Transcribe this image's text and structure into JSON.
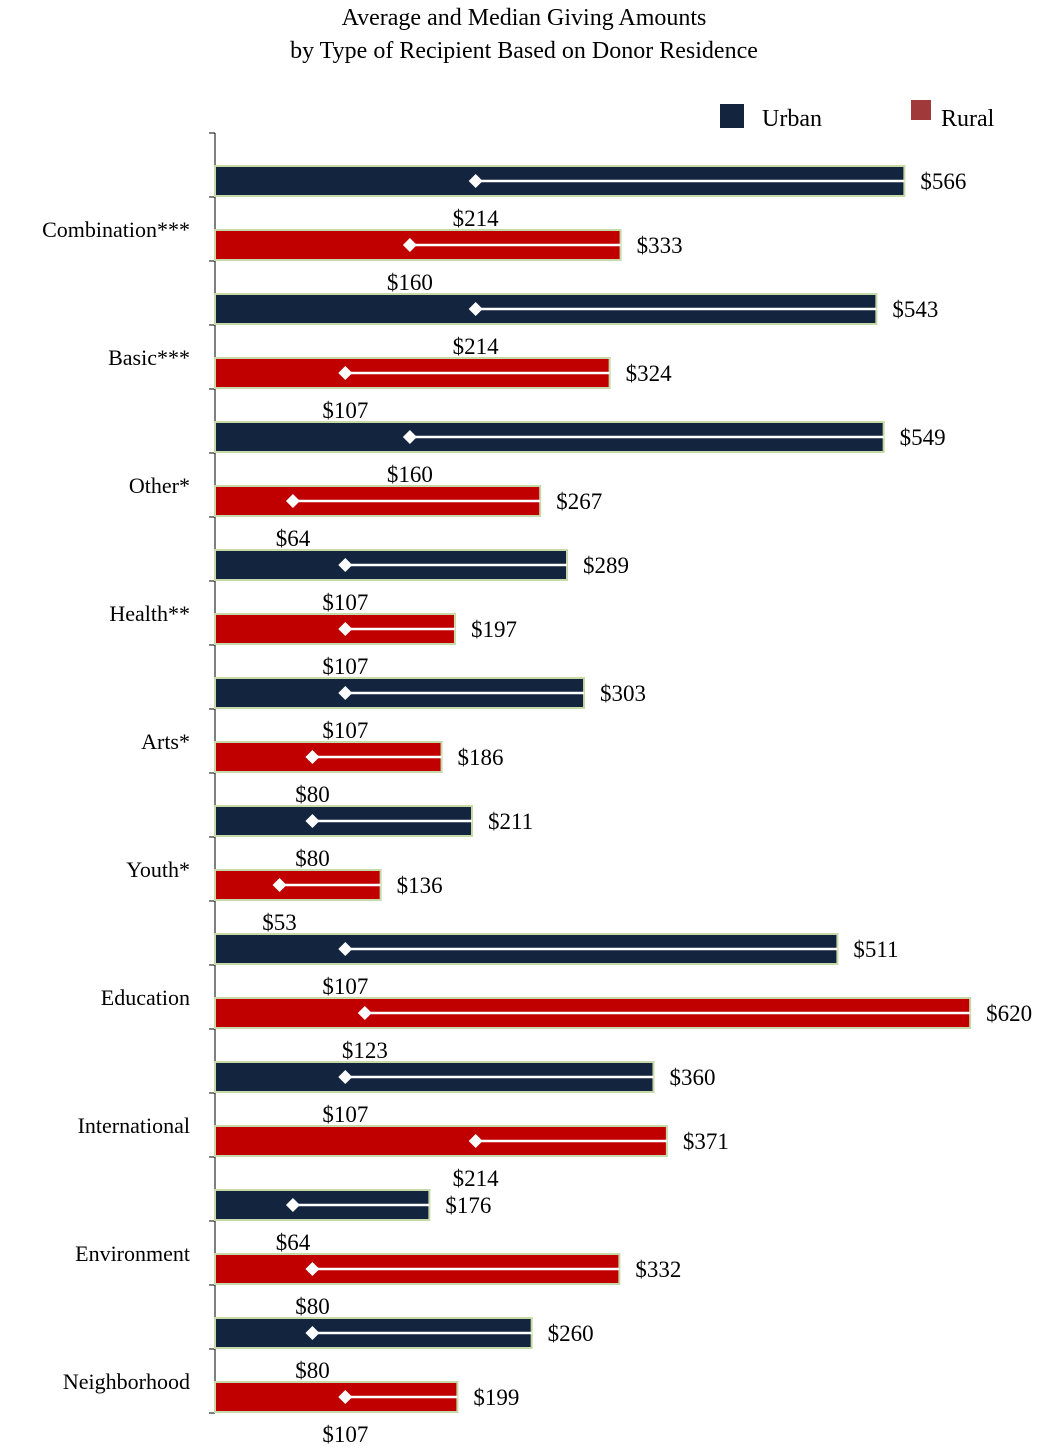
{
  "chart_data": {
    "type": "bar",
    "orientation": "horizontal",
    "title_lines": [
      "Average and Median Giving Amounts",
      "by  Type of Recipient Based on Donor Residence"
    ],
    "categories": [
      "Combination***",
      "Basic***",
      "Other*",
      "Health**",
      "Arts*",
      "Youth*",
      "Education",
      "International",
      "Environment",
      "Neighborhood"
    ],
    "series": [
      {
        "name": "Urban",
        "color": "#13243f",
        "values": [
          566,
          543,
          549,
          289,
          303,
          211,
          511,
          360,
          176,
          260
        ],
        "value_labels": [
          "$566",
          "$543",
          "$549",
          "$289",
          "$303",
          "$211",
          "$511",
          "$360",
          "$176",
          "$260"
        ],
        "medians": [
          214,
          214,
          160,
          107,
          107,
          80,
          107,
          107,
          64,
          80
        ],
        "median_labels": [
          "$214",
          "$214",
          "$160",
          "$107",
          "$107",
          "$80",
          "$107",
          "$107",
          "$64",
          "$80"
        ]
      },
      {
        "name": "Rural",
        "color": "#c00000",
        "values": [
          333,
          324,
          267,
          197,
          186,
          136,
          620,
          371,
          332,
          199
        ],
        "value_labels": [
          "$333",
          "$324",
          "$267",
          "$197",
          "$186",
          "$136",
          "$620",
          "$371",
          "$332",
          "$199"
        ],
        "medians": [
          160,
          107,
          64,
          107,
          80,
          53,
          123,
          214,
          80,
          107
        ],
        "median_labels": [
          "$160",
          "$107",
          "$64",
          "$107",
          "$80",
          "$53",
          "$123",
          "$214",
          "$80",
          "$107"
        ]
      }
    ],
    "legend": {
      "position": "top-right",
      "items": [
        {
          "label": "Urban",
          "color": "#13243f"
        },
        {
          "label": "Rural",
          "color": "#a03a3a"
        }
      ]
    },
    "xlim": [
      0,
      620
    ],
    "grid": false,
    "bar_outline_color": "#c8d9a8",
    "marker_color": "#ffffff"
  }
}
